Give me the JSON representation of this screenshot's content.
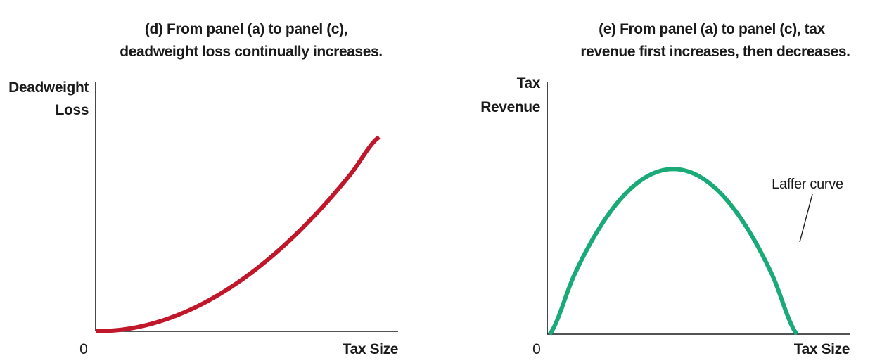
{
  "chart_data": [
    {
      "type": "line",
      "panel": "d",
      "title": [
        "(d) From panel (a) to panel (c),",
        "deadweight loss continually increases."
      ],
      "ylabel": [
        "Deadweight",
        "Loss"
      ],
      "xlabel": "Tax Size",
      "origin_label": "0",
      "color": "#c0172a",
      "series": [
        {
          "x": [
            0,
            1,
            2,
            3,
            4,
            5,
            6,
            7,
            8,
            9,
            10
          ],
          "values": [
            0.0,
            0.1,
            0.4,
            0.9,
            1.6,
            2.5,
            3.6,
            4.9,
            6.4,
            8.1,
            10.0
          ]
        }
      ],
      "xlim": [
        0,
        10
      ],
      "ylim": [
        0,
        11.3
      ]
    },
    {
      "type": "line",
      "panel": "e",
      "title": [
        "(e) From panel (a) to panel (c), tax",
        "revenue first increases, then decreases."
      ],
      "ylabel": [
        "Tax",
        "Revenue"
      ],
      "xlabel": "Tax Size",
      "origin_label": "0",
      "color": "#1aaa78",
      "annotation": "Laffer curve",
      "series": [
        {
          "x": [
            0,
            1,
            2,
            3,
            4,
            5,
            6,
            7,
            8,
            9,
            10
          ],
          "values": [
            0.0,
            3.6,
            6.4,
            8.4,
            9.6,
            10.0,
            9.6,
            8.4,
            6.4,
            3.6,
            0.0
          ]
        }
      ],
      "xlim": [
        -0.1,
        10.6
      ],
      "ylim": [
        0,
        17.0
      ]
    }
  ]
}
